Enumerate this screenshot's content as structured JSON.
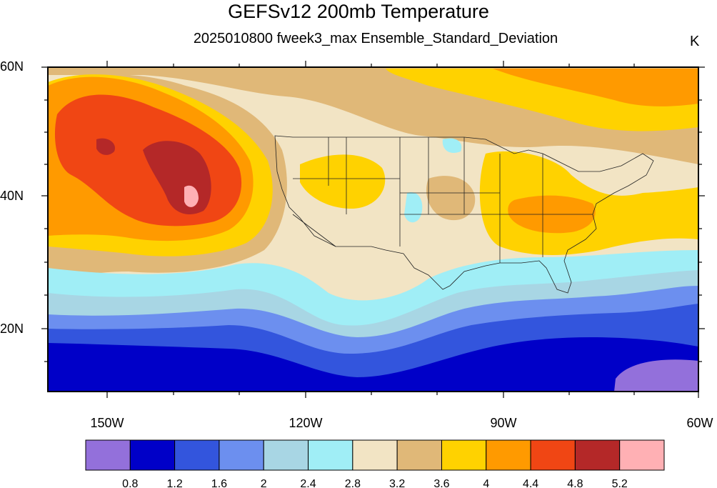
{
  "title": "GEFSv12 200mb Temperature",
  "subtitle": "2025010800 fweek3_max Ensemble_Standard_Deviation",
  "units": "K",
  "lat_labels": [
    "60N",
    "40N",
    "20N"
  ],
  "lon_labels": [
    "150W",
    "120W",
    "90W",
    "60W"
  ],
  "colorbar": {
    "colors": [
      "#9370DB",
      "#0000C8",
      "#3355DD",
      "#6C8FEF",
      "#A8D6E4",
      "#A0EEF6",
      "#F2E4C4",
      "#E0B878",
      "#FFD200",
      "#FF9A00",
      "#F04614",
      "#B42828",
      "#FFB0B4"
    ],
    "labels": [
      "0.8",
      "1.2",
      "1.6",
      "2",
      "2.4",
      "2.8",
      "3.2",
      "3.6",
      "4",
      "4.4",
      "4.8",
      "5.2"
    ]
  }
}
